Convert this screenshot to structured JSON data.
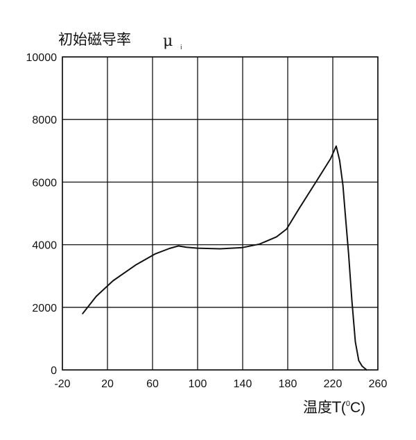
{
  "chart_data": {
    "type": "line",
    "title": "初始磁导率",
    "title_symbol": "μ",
    "title_symbol_subscript": "i",
    "xlabel": "温度T",
    "xlabel_unit_open": "(",
    "xlabel_unit_sup": "0",
    "xlabel_unit_rest": "C)",
    "ylabel": "",
    "xlim": [
      -20,
      260
    ],
    "ylim": [
      0,
      10000
    ],
    "x_ticks": [
      -20,
      20,
      60,
      100,
      140,
      180,
      220,
      260
    ],
    "x_tick_labels": [
      "-20",
      "20",
      "60",
      "100",
      "140",
      "180",
      "220",
      "260"
    ],
    "y_ticks": [
      0,
      2000,
      4000,
      6000,
      8000,
      10000
    ],
    "y_tick_labels": [
      "0",
      "2000",
      "4000",
      "6000",
      "8000",
      "10000"
    ],
    "grid": true,
    "series": [
      {
        "x": [
          -2,
          10,
          25,
          45,
          62,
          75,
          83,
          90,
          100,
          120,
          140,
          155,
          170,
          179,
          190,
          205,
          218,
          223,
          226,
          229,
          231,
          234,
          237,
          240,
          243,
          246,
          250
        ],
        "y": [
          1800,
          2350,
          2850,
          3350,
          3700,
          3880,
          3960,
          3920,
          3890,
          3870,
          3910,
          4020,
          4250,
          4500,
          5150,
          6000,
          6750,
          7150,
          6700,
          5900,
          5000,
          3700,
          2200,
          900,
          300,
          120,
          0
        ]
      }
    ]
  }
}
